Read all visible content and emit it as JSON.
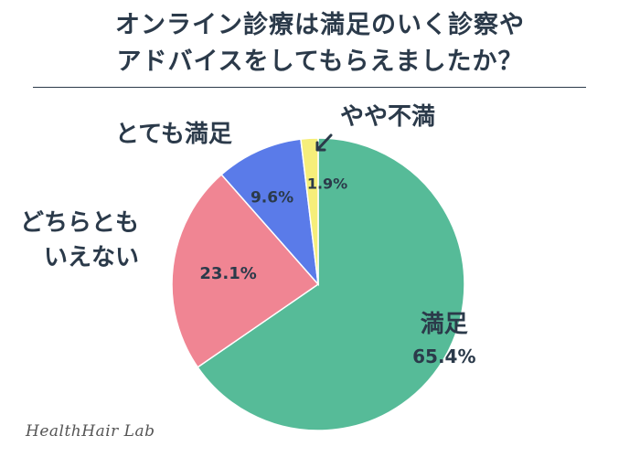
{
  "chart_data": {
    "type": "pie",
    "title_lines": [
      "オンライン診療は満足のいく診察や",
      "アドバイスをしてもらえましたか？"
    ],
    "start_angle_deg": 0,
    "direction": "clockwise",
    "slices": [
      {
        "label": "満足",
        "value": 65.4,
        "value_label": "65.4%",
        "color": "#56bb98"
      },
      {
        "label_lines": [
          "どちらとも",
          "いえない"
        ],
        "value": 23.1,
        "value_label": "23.1%",
        "color": "#f08593"
      },
      {
        "label": "とても満足",
        "value": 9.6,
        "value_label": "9.6%",
        "color": "#5a7be9"
      },
      {
        "label": "やや不満",
        "value": 1.9,
        "value_label": "1.9%",
        "color": "#f6ee7a"
      }
    ],
    "value_label_color": "#2b3a4a",
    "inside_label_color": "#2b3a4a"
  },
  "credit": "HealthHair Lab"
}
